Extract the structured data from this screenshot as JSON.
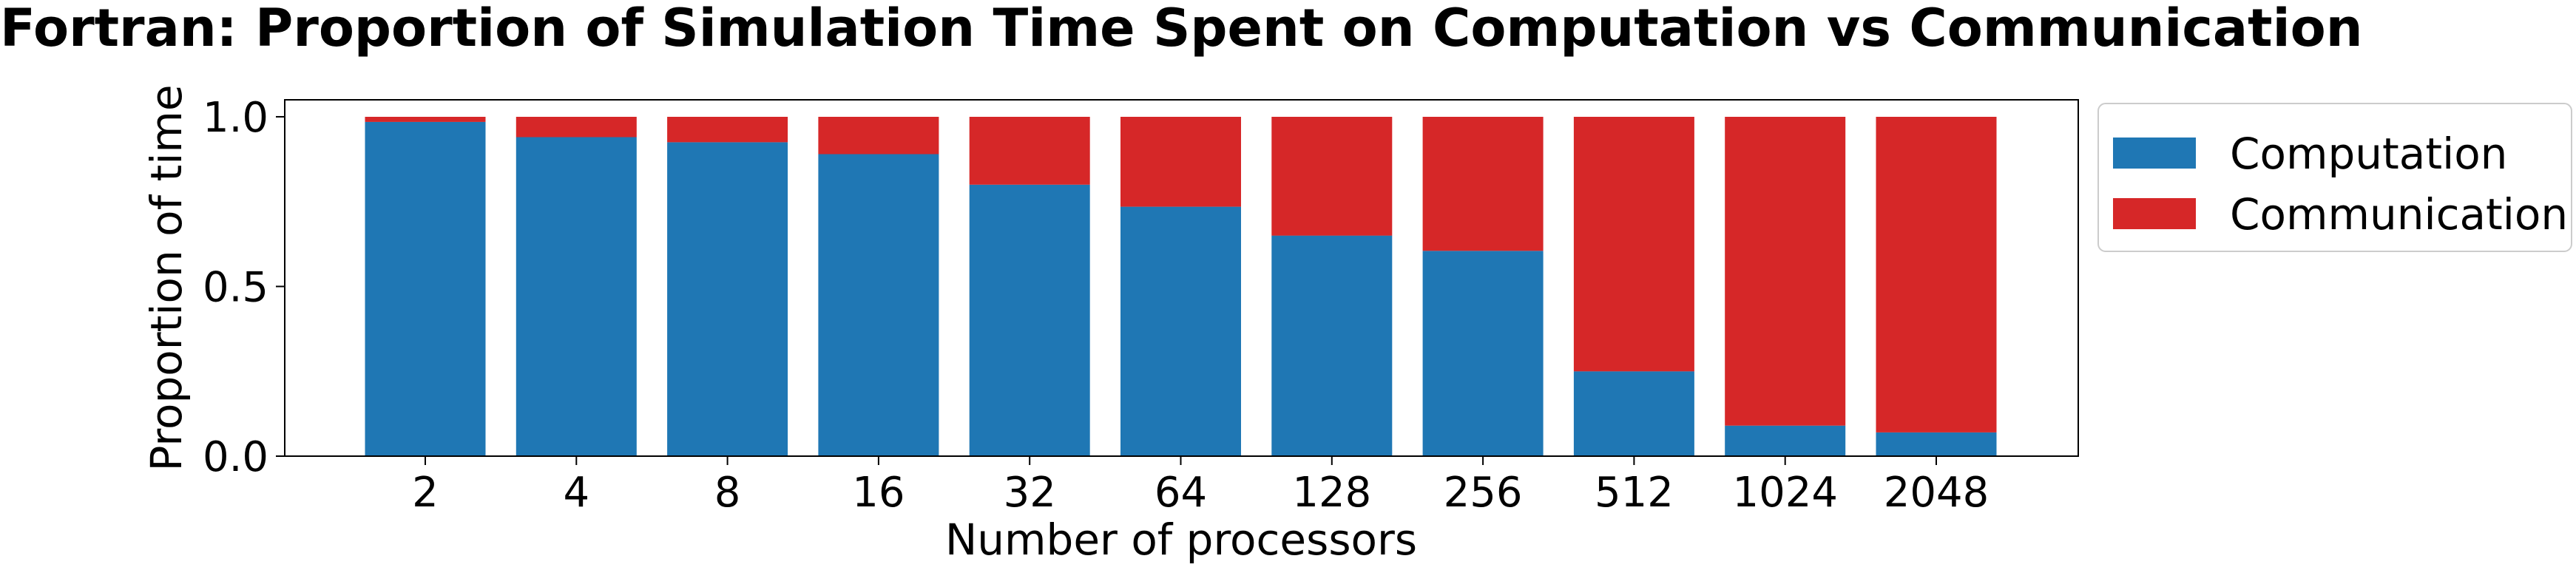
{
  "chart_data": {
    "type": "bar",
    "stacked": true,
    "title": "Fortran: Proportion of Simulation Time Spent on Computation vs Communication",
    "xlabel": "Number of processors",
    "ylabel": "Proportion of time",
    "categories": [
      "2",
      "4",
      "8",
      "16",
      "32",
      "64",
      "128",
      "256",
      "512",
      "1024",
      "2048"
    ],
    "series": [
      {
        "name": "Computation",
        "color": "#1f77b4",
        "values": [
          0.985,
          0.94,
          0.925,
          0.89,
          0.8,
          0.735,
          0.65,
          0.605,
          0.25,
          0.09,
          0.07
        ]
      },
      {
        "name": "Communication",
        "color": "#d62728",
        "values": [
          0.015,
          0.06,
          0.075,
          0.11,
          0.2,
          0.265,
          0.35,
          0.395,
          0.75,
          0.91,
          0.93
        ]
      }
    ],
    "ylim": [
      0.0,
      1.05
    ],
    "yticks": [
      "0.0",
      "0.5",
      "1.0"
    ],
    "grid": false,
    "legend_position": "outside-right-top"
  }
}
